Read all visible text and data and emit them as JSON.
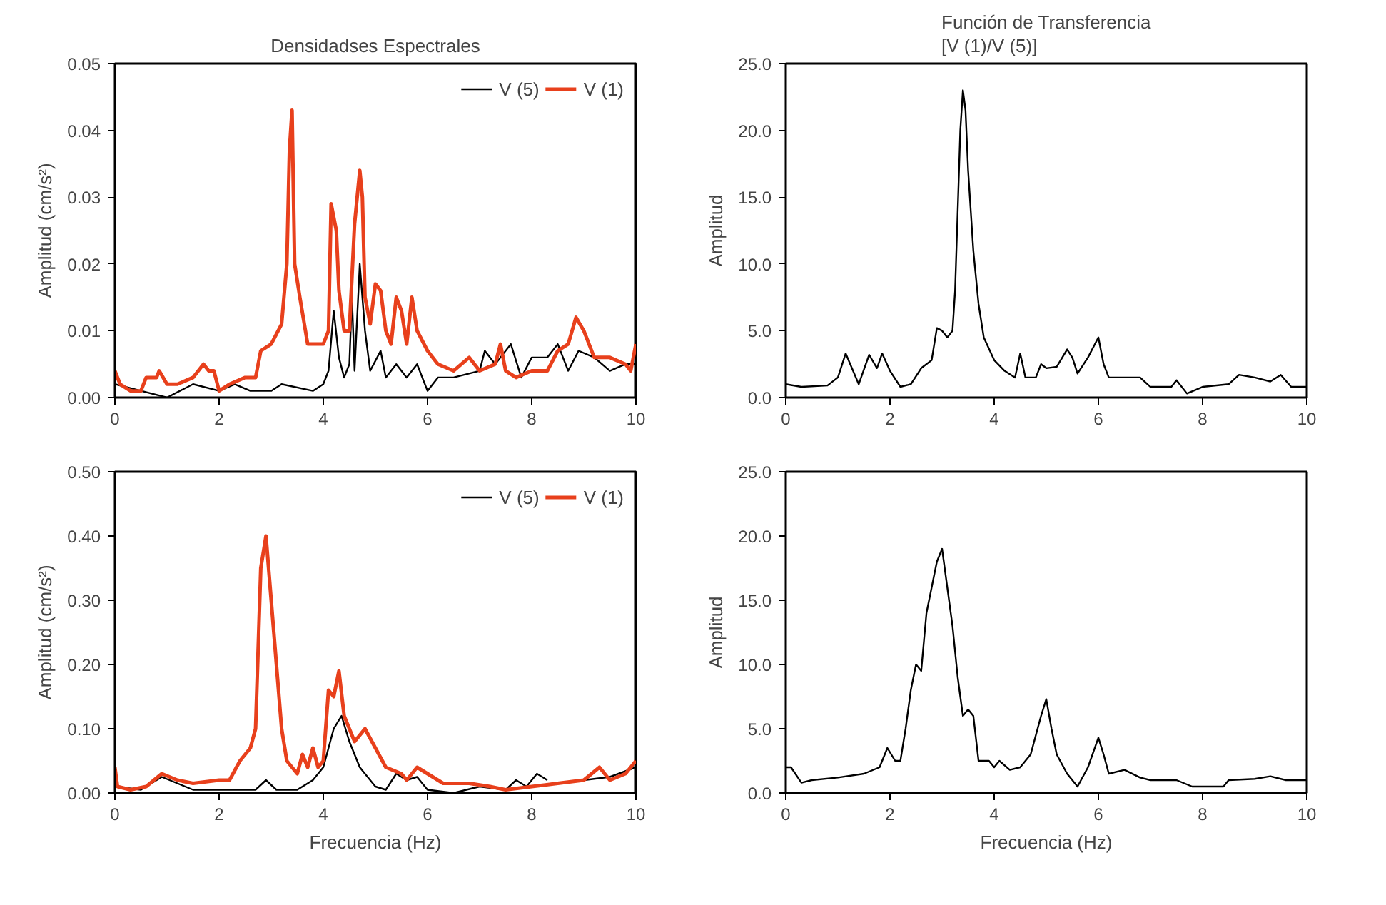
{
  "chart_data": [
    {
      "type": "line",
      "title": "Densidadses Espectrales",
      "ylabel": "Amplitud (cm/s²)",
      "xlim": [
        0,
        10
      ],
      "xticks": [
        0,
        2,
        4,
        6,
        8,
        10
      ],
      "ylim": [
        0,
        0.05
      ],
      "yticks": [
        {
          "value": 0,
          "label": "0.00"
        },
        {
          "value": 0.01,
          "label": "0.01"
        },
        {
          "value": 0.02,
          "label": "0.02"
        },
        {
          "value": 0.03,
          "label": "0.03"
        },
        {
          "value": 0.04,
          "label": "0.04"
        },
        {
          "value": 0.05,
          "label": "0.05"
        }
      ],
      "grid": false,
      "legend": "top right",
      "series": [
        {
          "name": "V (5)",
          "color": "#000000",
          "x": [
            0,
            0.5,
            1.0,
            1.5,
            2.0,
            2.3,
            2.6,
            3.0,
            3.2,
            3.8,
            4.0,
            4.1,
            4.2,
            4.3,
            4.4,
            4.5,
            4.55,
            4.6,
            4.7,
            4.8,
            4.9,
            5.1,
            5.2,
            5.4,
            5.6,
            5.8,
            6.0,
            6.2,
            6.5,
            7.0,
            7.1,
            7.3,
            7.6,
            7.8,
            8.0,
            8.3,
            8.5,
            8.7,
            8.9,
            9.2,
            9.5,
            9.8,
            10
          ],
          "values": [
            0.002,
            0.001,
            0.0,
            0.002,
            0.001,
            0.002,
            0.001,
            0.001,
            0.002,
            0.001,
            0.002,
            0.004,
            0.013,
            0.006,
            0.003,
            0.005,
            0.015,
            0.004,
            0.02,
            0.01,
            0.004,
            0.007,
            0.003,
            0.005,
            0.003,
            0.005,
            0.001,
            0.003,
            0.003,
            0.004,
            0.007,
            0.005,
            0.008,
            0.003,
            0.006,
            0.006,
            0.008,
            0.004,
            0.007,
            0.006,
            0.004,
            0.005,
            0.005
          ]
        },
        {
          "name": "V (1)",
          "color": "#e8401c",
          "x": [
            0,
            0.1,
            0.3,
            0.5,
            0.6,
            0.8,
            0.85,
            1.0,
            1.2,
            1.5,
            1.7,
            1.8,
            1.9,
            2.0,
            2.2,
            2.5,
            2.7,
            2.8,
            3.0,
            3.2,
            3.3,
            3.35,
            3.4,
            3.45,
            3.55,
            3.7,
            4.0,
            4.1,
            4.15,
            4.25,
            4.3,
            4.4,
            4.5,
            4.6,
            4.7,
            4.75,
            4.8,
            4.9,
            5.0,
            5.1,
            5.2,
            5.3,
            5.4,
            5.5,
            5.6,
            5.7,
            5.8,
            6.0,
            6.2,
            6.5,
            6.8,
            7.0,
            7.3,
            7.4,
            7.5,
            7.7,
            8.0,
            8.3,
            8.5,
            8.7,
            8.85,
            9.0,
            9.2,
            9.5,
            9.8,
            9.9,
            10
          ],
          "values": [
            0.004,
            0.002,
            0.001,
            0.001,
            0.003,
            0.003,
            0.004,
            0.002,
            0.002,
            0.003,
            0.005,
            0.004,
            0.004,
            0.001,
            0.002,
            0.003,
            0.003,
            0.007,
            0.008,
            0.011,
            0.02,
            0.037,
            0.043,
            0.02,
            0.015,
            0.008,
            0.008,
            0.01,
            0.029,
            0.025,
            0.016,
            0.01,
            0.01,
            0.026,
            0.034,
            0.03,
            0.015,
            0.011,
            0.017,
            0.016,
            0.01,
            0.008,
            0.015,
            0.013,
            0.008,
            0.015,
            0.01,
            0.007,
            0.005,
            0.004,
            0.006,
            0.004,
            0.005,
            0.008,
            0.004,
            0.003,
            0.004,
            0.004,
            0.007,
            0.008,
            0.012,
            0.01,
            0.006,
            0.006,
            0.005,
            0.004,
            0.008
          ]
        }
      ]
    },
    {
      "type": "line",
      "title": "Función de Transferencia\n[V (1)/V (5)]",
      "ylabel": "Amplitud",
      "xlim": [
        0,
        10
      ],
      "xticks": [
        0,
        2,
        4,
        6,
        8,
        10
      ],
      "ylim": [
        0,
        25
      ],
      "yticks": [
        {
          "value": 0,
          "label": "0.0"
        },
        {
          "value": 5,
          "label": "5.0"
        },
        {
          "value": 10,
          "label": "10.0"
        },
        {
          "value": 15,
          "label": "15.0"
        },
        {
          "value": 20,
          "label": "20.0"
        },
        {
          "value": 25,
          "label": "25.0"
        }
      ],
      "grid": false,
      "legend": false,
      "series": [
        {
          "color": "#000000",
          "x": [
            0,
            0.3,
            0.8,
            1.0,
            1.15,
            1.4,
            1.6,
            1.75,
            1.85,
            2.0,
            2.2,
            2.4,
            2.6,
            2.8,
            2.9,
            3.0,
            3.1,
            3.2,
            3.25,
            3.3,
            3.35,
            3.4,
            3.45,
            3.5,
            3.6,
            3.7,
            3.8,
            4.0,
            4.2,
            4.4,
            4.5,
            4.6,
            4.8,
            4.9,
            5.0,
            5.2,
            5.4,
            5.5,
            5.6,
            5.8,
            6.0,
            6.1,
            6.2,
            6.5,
            6.8,
            7.0,
            7.4,
            7.5,
            7.7,
            8.0,
            8.5,
            8.7,
            9.0,
            9.3,
            9.5,
            9.7,
            10
          ],
          "values": [
            1.0,
            0.8,
            0.9,
            1.5,
            3.3,
            1.0,
            3.2,
            2.2,
            3.3,
            2.0,
            0.8,
            1.0,
            2.2,
            2.8,
            5.2,
            5.0,
            4.5,
            5.0,
            8.0,
            14,
            20,
            23,
            21.5,
            17,
            11,
            7,
            4.5,
            2.8,
            2.0,
            1.5,
            3.3,
            1.5,
            1.5,
            2.5,
            2.2,
            2.3,
            3.6,
            3.0,
            1.8,
            3.0,
            4.5,
            2.5,
            1.5,
            1.5,
            1.5,
            0.8,
            0.8,
            1.3,
            0.3,
            0.8,
            1.0,
            1.7,
            1.5,
            1.2,
            1.7,
            0.8,
            0.8
          ]
        }
      ]
    },
    {
      "type": "line",
      "ylabel": "Amplitud (cm/s²)",
      "xlabel": "Frecuencia (Hz)",
      "xlim": [
        0,
        10
      ],
      "xticks": [
        0,
        2,
        4,
        6,
        8,
        10
      ],
      "ylim": [
        0,
        0.5
      ],
      "yticks": [
        {
          "value": 0,
          "label": "0.00"
        },
        {
          "value": 0.1,
          "label": "0.10"
        },
        {
          "value": 0.2,
          "label": "0.20"
        },
        {
          "value": 0.3,
          "label": "0.30"
        },
        {
          "value": 0.4,
          "label": "0.40"
        },
        {
          "value": 0.5,
          "label": "0.50"
        }
      ],
      "grid": false,
      "legend": "top right",
      "series": [
        {
          "name": "V (5)",
          "color": "#000000",
          "x": [
            0,
            0.5,
            0.9,
            1.2,
            1.5,
            2.7,
            2.9,
            3.1,
            3.5,
            3.8,
            4.0,
            4.2,
            4.35,
            4.5,
            4.7,
            5.0,
            5.2,
            5.4,
            5.6,
            5.8,
            6.0,
            6.5,
            7.0,
            7.5,
            7.7,
            7.9,
            8.1,
            8.3,
            8.6,
            9.0,
            9.5,
            10
          ],
          "values": [
            0.01,
            0.005,
            0.025,
            0.015,
            0.005,
            0.005,
            0.02,
            0.005,
            0.005,
            0.02,
            0.04,
            0.1,
            0.12,
            0.08,
            0.04,
            0.01,
            0.005,
            0.03,
            0.02,
            0.025,
            0.005,
            0.0,
            0.01,
            0.005,
            0.02,
            0.01,
            0.03,
            0.02,
            null,
            0.02,
            0.025,
            0.04
          ]
        },
        {
          "name": "V (1)",
          "color": "#e8401c",
          "x": [
            0,
            0.05,
            0.3,
            0.6,
            0.9,
            1.2,
            1.5,
            2.0,
            2.2,
            2.4,
            2.6,
            2.7,
            2.8,
            2.9,
            3.0,
            3.1,
            3.2,
            3.3,
            3.5,
            3.6,
            3.7,
            3.8,
            3.9,
            4.0,
            4.1,
            4.2,
            4.3,
            4.4,
            4.6,
            4.8,
            5.0,
            5.2,
            5.5,
            5.6,
            5.8,
            6.0,
            6.3,
            6.8,
            7.2,
            7.5,
            8.0,
            8.5,
            9.0,
            9.3,
            9.5,
            9.8,
            10
          ],
          "values": [
            0.04,
            0.01,
            0.005,
            0.01,
            0.03,
            0.02,
            0.015,
            0.02,
            0.02,
            0.05,
            0.07,
            0.1,
            0.35,
            0.4,
            0.3,
            0.2,
            0.1,
            0.05,
            0.03,
            0.06,
            0.04,
            0.07,
            0.04,
            0.05,
            0.16,
            0.15,
            0.19,
            0.12,
            0.08,
            0.1,
            0.07,
            0.04,
            0.03,
            0.02,
            0.04,
            0.03,
            0.015,
            0.015,
            0.01,
            0.005,
            0.01,
            0.015,
            0.02,
            0.04,
            0.02,
            0.03,
            0.05
          ]
        }
      ]
    },
    {
      "type": "line",
      "ylabel": "Amplitud",
      "xlabel": "Frecuencia (Hz)",
      "xlim": [
        0,
        10
      ],
      "xticks": [
        0,
        2,
        4,
        6,
        8,
        10
      ],
      "ylim": [
        0,
        25
      ],
      "yticks": [
        {
          "value": 0,
          "label": "0.0"
        },
        {
          "value": 5,
          "label": "5.0"
        },
        {
          "value": 10,
          "label": "10.0"
        },
        {
          "value": 15,
          "label": "15.0"
        },
        {
          "value": 20,
          "label": "20.0"
        },
        {
          "value": 25,
          "label": "25.0"
        }
      ],
      "grid": false,
      "legend": false,
      "series": [
        {
          "color": "#000000",
          "x": [
            0,
            0.1,
            0.3,
            0.5,
            1.0,
            1.5,
            1.8,
            1.95,
            2.1,
            2.2,
            2.3,
            2.4,
            2.5,
            2.6,
            2.7,
            2.8,
            2.9,
            3.0,
            3.1,
            3.2,
            3.3,
            3.4,
            3.5,
            3.6,
            3.7,
            3.9,
            4.0,
            4.1,
            4.3,
            4.5,
            4.7,
            4.9,
            5.0,
            5.1,
            5.2,
            5.4,
            5.6,
            5.8,
            6.0,
            6.1,
            6.2,
            6.5,
            6.8,
            7.0,
            7.5,
            7.8,
            8.0,
            8.4,
            8.5,
            9.0,
            9.3,
            9.6,
            10
          ],
          "values": [
            2.0,
            2.0,
            0.8,
            1.0,
            1.2,
            1.5,
            2.0,
            3.5,
            2.5,
            2.5,
            5.0,
            8.0,
            10,
            9.5,
            14,
            16,
            18,
            19,
            16,
            13,
            9,
            6,
            6.5,
            6,
            2.5,
            2.5,
            2,
            2.5,
            1.8,
            2.0,
            3.0,
            6.0,
            7.3,
            5.0,
            3.0,
            1.5,
            0.5,
            2.0,
            4.3,
            3.0,
            1.5,
            1.8,
            1.2,
            1.0,
            1.0,
            0.5,
            0.5,
            0.5,
            1.0,
            1.1,
            1.3,
            1.0,
            1.0
          ]
        }
      ]
    }
  ]
}
